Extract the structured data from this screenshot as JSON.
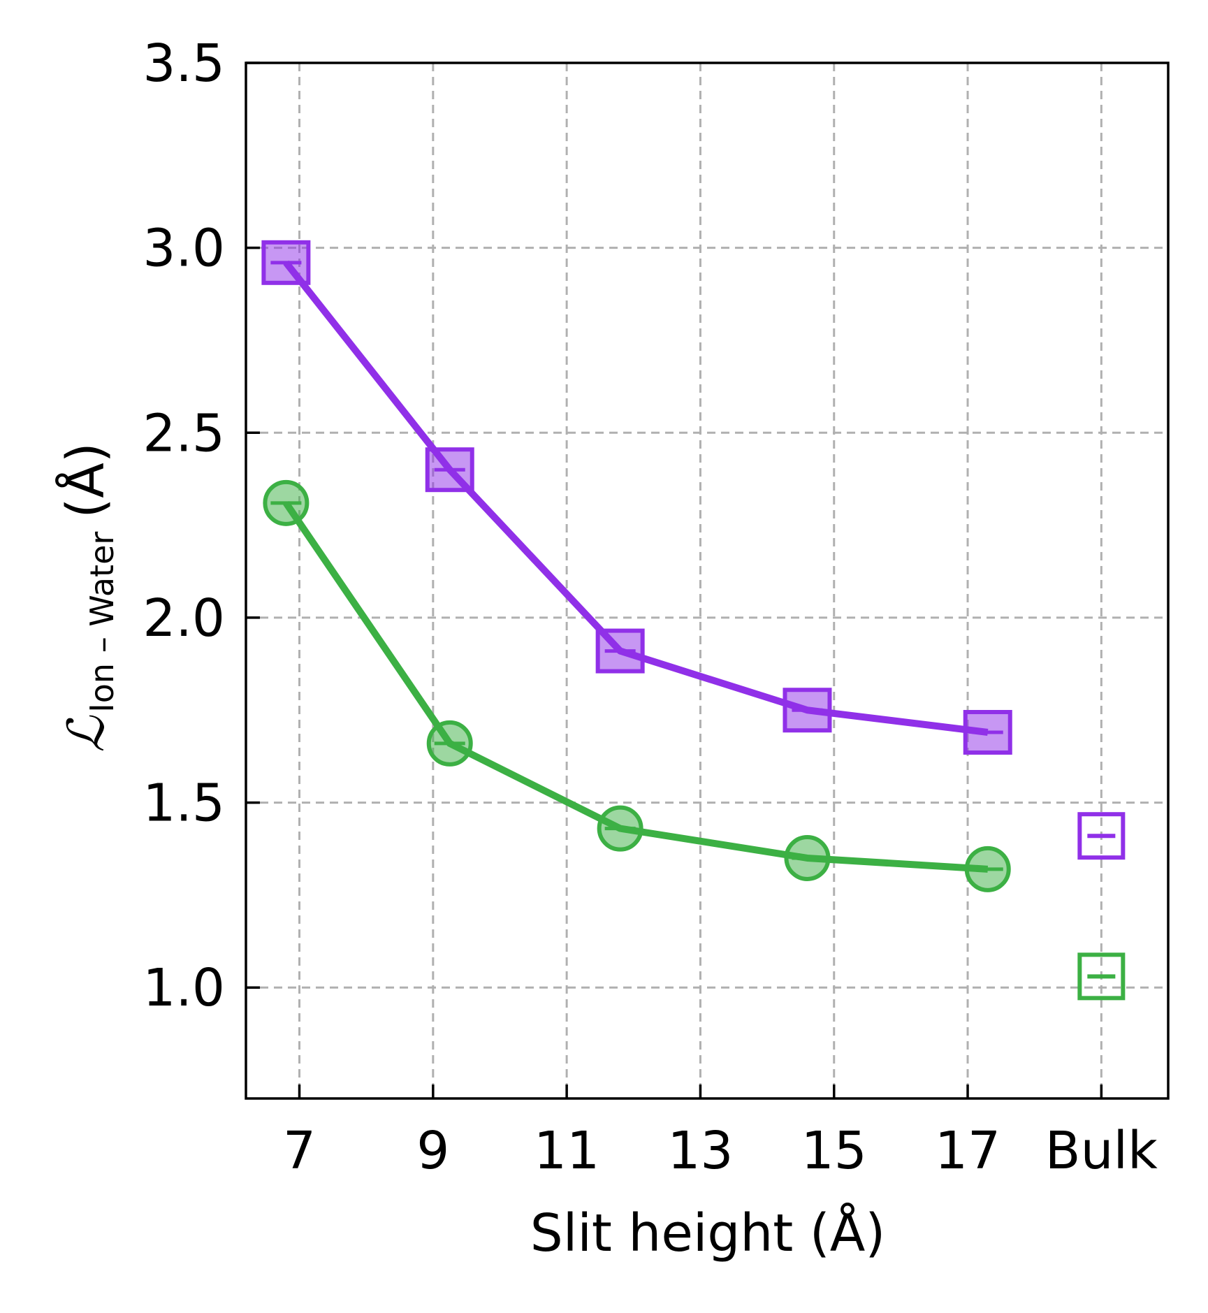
{
  "chart_data": {
    "type": "line",
    "title": "",
    "xlabel": "Slit height (Å)",
    "ylabel": {
      "symbol": "ℒ",
      "subscript": "Ion – Water",
      "unit": "(Å)"
    },
    "x_ticks": [
      "7",
      "9",
      "11",
      "13",
      "15",
      "17",
      "Bulk"
    ],
    "x_tick_values": [
      7,
      9,
      11,
      13,
      15,
      17,
      19
    ],
    "y_ticks": [
      "1.0",
      "1.5",
      "2.0",
      "2.5",
      "3.0",
      "3.5"
    ],
    "y_tick_values": [
      1.0,
      1.5,
      2.0,
      2.5,
      3.0,
      3.5
    ],
    "xlim": [
      6.2,
      20.0
    ],
    "ylim": [
      0.7,
      3.5
    ],
    "grid": true,
    "series": [
      {
        "marker": "square",
        "color": "#9030e8",
        "x": [
          6.8,
          9.25,
          11.8,
          14.6,
          17.3
        ],
        "y": [
          2.96,
          2.4,
          1.91,
          1.75,
          1.69
        ],
        "bulk": {
          "x": 19,
          "y": 1.41
        }
      },
      {
        "marker": "circle",
        "color": "#3cb044",
        "x": [
          6.8,
          9.25,
          11.8,
          14.6,
          17.3
        ],
        "y": [
          2.31,
          1.66,
          1.43,
          1.35,
          1.32
        ],
        "bulk": {
          "x": 19,
          "y": 1.03
        }
      }
    ]
  }
}
